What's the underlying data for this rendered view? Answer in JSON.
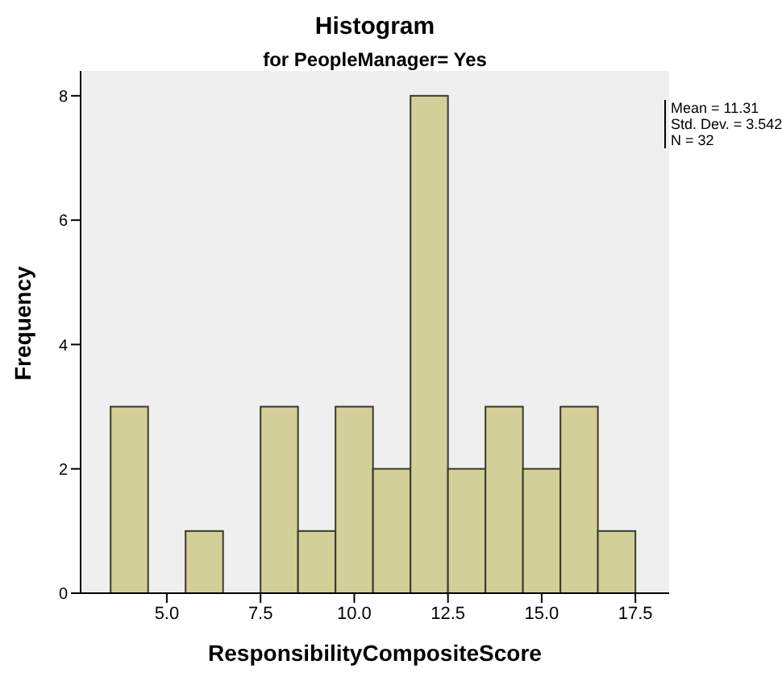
{
  "chart_data": {
    "type": "histogram",
    "title": "Histogram",
    "subtitle": "for PeopleManager= Yes",
    "xlabel": "ResponsibilityCompositeScore",
    "ylabel": "Frequency",
    "annotations": [
      "Mean = 11.31",
      "Std. Dev. = 3.542",
      "N = 32"
    ],
    "bins": [
      3.5,
      4.5,
      5.5,
      6.5,
      7.5,
      8.5,
      9.5,
      10.5,
      11.5,
      12.5,
      13.5,
      14.5,
      15.5,
      16.5,
      17.5
    ],
    "values": [
      3,
      0,
      1,
      0,
      3,
      1,
      3,
      2,
      8,
      2,
      3,
      2,
      3,
      1
    ],
    "color": "#d3cf98",
    "xlim": [
      2.7,
      18.4
    ],
    "xticks": [
      {
        "value": 5,
        "label": "5.0"
      },
      {
        "value": 7.5,
        "label": "7.5"
      },
      {
        "value": 10,
        "label": "10.0"
      },
      {
        "value": 12.5,
        "label": "12.5"
      },
      {
        "value": 15,
        "label": "15.0"
      },
      {
        "value": 17.5,
        "label": "17.5"
      }
    ],
    "ylim": [
      0,
      8.4
    ],
    "yticks": [
      0,
      2,
      4,
      6,
      8
    ],
    "grid": false
  }
}
